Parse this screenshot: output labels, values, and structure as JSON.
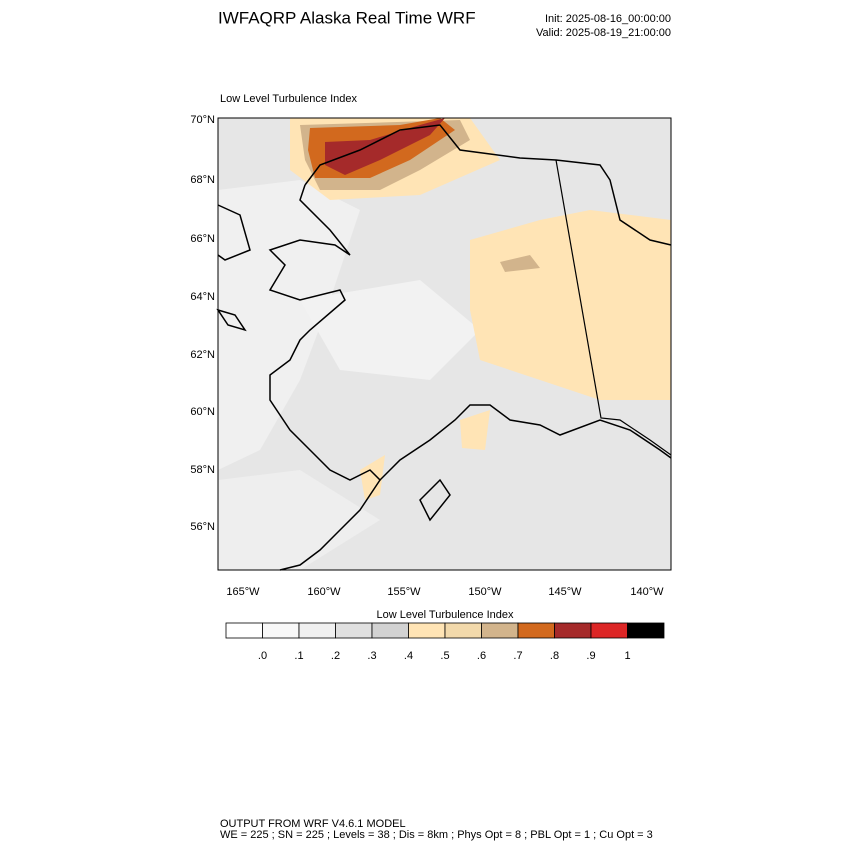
{
  "header": {
    "title": "IWFAQRP Alaska Real Time WRF",
    "init": "Init: 2025-08-16_00:00:00",
    "valid": "Valid: 2025-08-19_21:00:00"
  },
  "plot": {
    "title": "Low Level Turbulence Index",
    "lat_labels": [
      "70°N",
      "68°N",
      "66°N",
      "64°N",
      "62°N",
      "60°N",
      "58°N",
      "56°N"
    ],
    "lon_labels": [
      "165°W",
      "160°W",
      "155°W",
      "150°W",
      "145°W",
      "140°W"
    ]
  },
  "colorbar": {
    "title": "Low Level Turbulence Index",
    "labels": [
      ".0",
      ".1",
      ".2",
      ".3",
      ".4",
      ".5",
      ".6",
      ".7",
      ".8",
      ".9",
      "1"
    ],
    "colors": [
      "#ffffff",
      "#f8f8f8",
      "#f0f0f0",
      "#e0e0e0",
      "#d2d2d2",
      "#ffe4b5",
      "#f2d9ab",
      "#d2b48c",
      "#d2691e",
      "#a52a2a",
      "#dc2626",
      "#000000"
    ]
  },
  "footer": {
    "line1": "OUTPUT FROM WRF V4.6.1 MODEL",
    "line2": "WE = 225 ; SN = 225 ; Levels = 38 ; Dis = 8km ; Phys Opt = 8 ; PBL Opt = 1 ; Cu Opt = 3"
  }
}
